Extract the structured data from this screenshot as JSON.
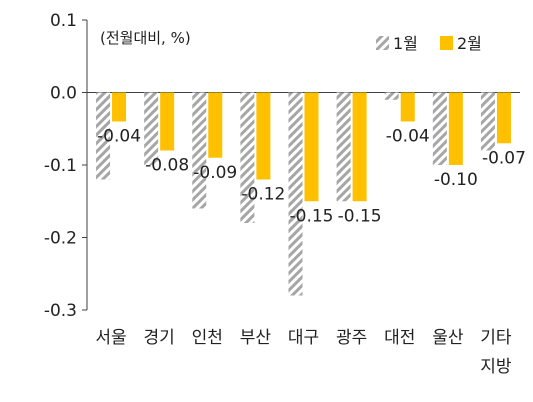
{
  "chart_data": {
    "type": "bar",
    "unit_label": "(전월대비, %)",
    "categories": [
      {
        "line1": "서울",
        "line2": ""
      },
      {
        "line1": "경기",
        "line2": ""
      },
      {
        "line1": "인천",
        "line2": ""
      },
      {
        "line1": "부산",
        "line2": ""
      },
      {
        "line1": "대구",
        "line2": ""
      },
      {
        "line1": "광주",
        "line2": ""
      },
      {
        "line1": "대전",
        "line2": ""
      },
      {
        "line1": "울산",
        "line2": ""
      },
      {
        "line1": "기타",
        "line2": "지방"
      }
    ],
    "series": [
      {
        "name": "1월",
        "style": "hatched",
        "color": "#a6a6a6",
        "values": [
          -0.12,
          -0.1,
          -0.16,
          -0.18,
          -0.28,
          -0.15,
          -0.01,
          -0.1,
          -0.08
        ]
      },
      {
        "name": "2월",
        "style": "solid",
        "color": "#ffc000",
        "values": [
          -0.04,
          -0.08,
          -0.09,
          -0.12,
          -0.15,
          -0.15,
          -0.04,
          -0.1,
          -0.07
        ]
      }
    ],
    "data_labels": [
      "-0.04",
      "-0.08",
      "-0.09",
      "-0.12",
      "-0.15",
      "-0.15",
      "-0.04",
      "-0.10",
      "-0.07"
    ],
    "yticks": [
      "0.1",
      "0.0",
      "-0.1",
      "-0.2",
      "-0.3"
    ],
    "ylim": [
      -0.3,
      0.1
    ],
    "grid": false,
    "legend_position": "top-right"
  }
}
